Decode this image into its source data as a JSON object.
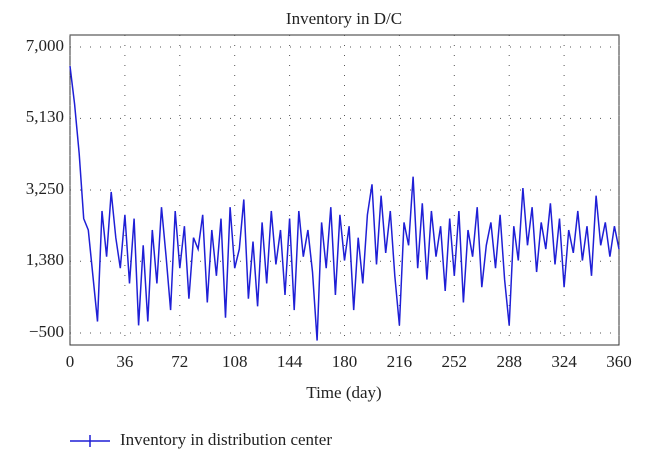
{
  "chart_data": {
    "type": "line",
    "title": "Inventory in D/C",
    "x_label": "Time (day)",
    "x": [
      0,
      3,
      6,
      9,
      12,
      15,
      18,
      21,
      24,
      27,
      30,
      33,
      36,
      39,
      42,
      45,
      48,
      51,
      54,
      57,
      60,
      63,
      66,
      69,
      72,
      75,
      78,
      81,
      84,
      87,
      90,
      93,
      96,
      99,
      102,
      105,
      108,
      111,
      114,
      117,
      120,
      123,
      126,
      129,
      132,
      135,
      138,
      141,
      144,
      147,
      150,
      153,
      156,
      159,
      162,
      165,
      168,
      171,
      174,
      177,
      180,
      183,
      186,
      189,
      192,
      195,
      198,
      201,
      204,
      207,
      210,
      213,
      216,
      219,
      222,
      225,
      228,
      231,
      234,
      237,
      240,
      243,
      246,
      249,
      252,
      255,
      258,
      261,
      264,
      267,
      270,
      273,
      276,
      279,
      282,
      285,
      288,
      291,
      294,
      297,
      300,
      303,
      306,
      309,
      312,
      315,
      318,
      321,
      324,
      327,
      330,
      333,
      336,
      339,
      342,
      345,
      348,
      351,
      354,
      357,
      360
    ],
    "series": [
      {
        "name": "Inventory in distribution center",
        "color": "#1f1fd6",
        "values": [
          6500,
          5500,
          4200,
          2500,
          2200,
          1000,
          -200,
          2700,
          1500,
          3200,
          2000,
          1200,
          2600,
          800,
          2500,
          -300,
          1800,
          -200,
          2200,
          800,
          2800,
          1500,
          100,
          2700,
          1200,
          2300,
          400,
          2000,
          1700,
          2600,
          300,
          2200,
          1000,
          2500,
          -100,
          2800,
          1200,
          1700,
          3000,
          400,
          1900,
          200,
          2400,
          800,
          2700,
          1300,
          2200,
          500,
          2500,
          100,
          2700,
          1500,
          2200,
          1100,
          -700,
          2400,
          1200,
          2800,
          500,
          2600,
          1400,
          2300,
          100,
          2000,
          800,
          2600,
          3400,
          1300,
          3100,
          1600,
          2700,
          1000,
          -300,
          2400,
          1800,
          3600,
          1200,
          2900,
          900,
          2700,
          1500,
          2300,
          600,
          2500,
          1000,
          2700,
          300,
          2200,
          1500,
          2800,
          700,
          1800,
          2400,
          1200,
          2600,
          900,
          -300,
          2300,
          1400,
          3300,
          1800,
          2800,
          1100,
          2400,
          1700,
          2900,
          1300,
          2500,
          700,
          2200,
          1600,
          2700,
          1400,
          2300,
          1000,
          3100,
          1800,
          2400,
          1500,
          2300,
          1700
        ]
      }
    ],
    "xlim": [
      0,
      360
    ],
    "xticks": [
      0,
      36,
      72,
      108,
      144,
      180,
      216,
      252,
      288,
      324,
      360
    ],
    "ylim": [
      -815,
      7315
    ],
    "yticks": [
      {
        "value": -500,
        "label": "−500"
      },
      {
        "value": 1380,
        "label": "1,380"
      },
      {
        "value": 3250,
        "label": "3,250"
      },
      {
        "value": 5130,
        "label": "5,130"
      },
      {
        "value": 7000,
        "label": "7,000"
      }
    ],
    "grid": true
  }
}
